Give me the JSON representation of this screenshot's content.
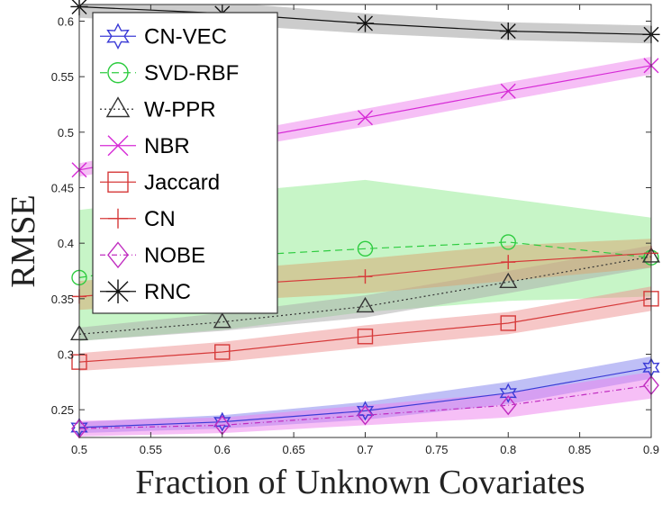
{
  "chart_data": {
    "type": "line",
    "title": "",
    "xlabel": "Fraction of Unknown Covariates",
    "ylabel": "RMSE",
    "xlim": [
      0.5,
      0.9
    ],
    "ylim": [
      0.225,
      0.615
    ],
    "x_ticks": [
      0.5,
      0.55,
      0.6,
      0.65,
      0.7,
      0.75,
      0.8,
      0.85,
      0.9
    ],
    "x_tick_labels": [
      "0.5",
      "0.55",
      "0.6",
      "0.65",
      "0.7",
      "0.75",
      "0.8",
      "0.85",
      "0.9"
    ],
    "y_ticks": [
      0.25,
      0.3,
      0.35,
      0.4,
      0.45,
      0.5,
      0.55,
      0.6
    ],
    "y_tick_labels": [
      "0.25",
      "0.3",
      "0.35",
      "0.4",
      "0.45",
      "0.5",
      "0.55",
      "0.6"
    ],
    "grid": false,
    "legend_position": "top-left",
    "x": [
      0.5,
      0.6,
      0.7,
      0.8,
      0.9
    ],
    "series": [
      {
        "name": "CN-VEC",
        "color": "#3b3bd6",
        "band": "#8080ee",
        "dash": "",
        "marker": "hexagram",
        "values": [
          0.234,
          0.239,
          0.249,
          0.265,
          0.288
        ],
        "lower": [
          0.229,
          0.233,
          0.241,
          0.255,
          0.278
        ],
        "upper": [
          0.239,
          0.245,
          0.257,
          0.275,
          0.298
        ]
      },
      {
        "name": "SVD-RBF",
        "color": "#2ecc40",
        "band": "#8fec8f",
        "dash": "8,5",
        "marker": "circle",
        "values": [
          0.369,
          0.388,
          0.395,
          0.401,
          0.387
        ],
        "lower": [
          0.312,
          0.322,
          0.338,
          0.348,
          0.352
        ],
        "upper": [
          0.43,
          0.445,
          0.457,
          0.44,
          0.423
        ]
      },
      {
        "name": "W-PPR",
        "color": "#333333",
        "band": "#aaaaaa",
        "dash": "2,3",
        "marker": "triangle",
        "values": [
          0.318,
          0.329,
          0.343,
          0.365,
          0.388
        ],
        "lower": [
          0.312,
          0.321,
          0.333,
          0.355,
          0.378
        ],
        "upper": [
          0.324,
          0.337,
          0.353,
          0.375,
          0.398
        ]
      },
      {
        "name": "NBR",
        "color": "#d62ad6",
        "band": "#ee80ee",
        "dash": "",
        "marker": "x",
        "values": [
          0.466,
          0.49,
          0.513,
          0.537,
          0.56
        ],
        "lower": [
          0.46,
          0.483,
          0.505,
          0.529,
          0.552
        ],
        "upper": [
          0.472,
          0.497,
          0.521,
          0.545,
          0.568
        ]
      },
      {
        "name": "Jaccard",
        "color": "#d63a3a",
        "band": "#ee9090",
        "dash": "",
        "marker": "square",
        "values": [
          0.293,
          0.302,
          0.316,
          0.328,
          0.35
        ],
        "lower": [
          0.285,
          0.293,
          0.306,
          0.318,
          0.339
        ],
        "upper": [
          0.301,
          0.311,
          0.326,
          0.338,
          0.361
        ]
      },
      {
        "name": "CN",
        "color": "#d63a3a",
        "band": "#d9a36e",
        "dash": "",
        "marker": "plus",
        "values": [
          0.352,
          0.362,
          0.37,
          0.383,
          0.391
        ],
        "lower": [
          0.34,
          0.348,
          0.355,
          0.366,
          0.378
        ],
        "upper": [
          0.366,
          0.376,
          0.386,
          0.398,
          0.404
        ]
      },
      {
        "name": "NOBE",
        "color": "#c02cc0",
        "band": "#ee80ee",
        "dash": "6,3,1,3",
        "marker": "diamond",
        "values": [
          0.233,
          0.236,
          0.245,
          0.254,
          0.272
        ],
        "lower": [
          0.226,
          0.229,
          0.236,
          0.243,
          0.26
        ],
        "upper": [
          0.24,
          0.243,
          0.254,
          0.265,
          0.284
        ]
      },
      {
        "name": "RNC",
        "color": "#111111",
        "band": "#9a9a9a",
        "dash": "",
        "marker": "asterisk",
        "values": [
          0.613,
          0.607,
          0.598,
          0.591,
          0.588
        ],
        "lower": [
          0.603,
          0.597,
          0.589,
          0.583,
          0.58
        ],
        "upper": [
          0.623,
          0.617,
          0.607,
          0.599,
          0.596
        ]
      }
    ]
  }
}
